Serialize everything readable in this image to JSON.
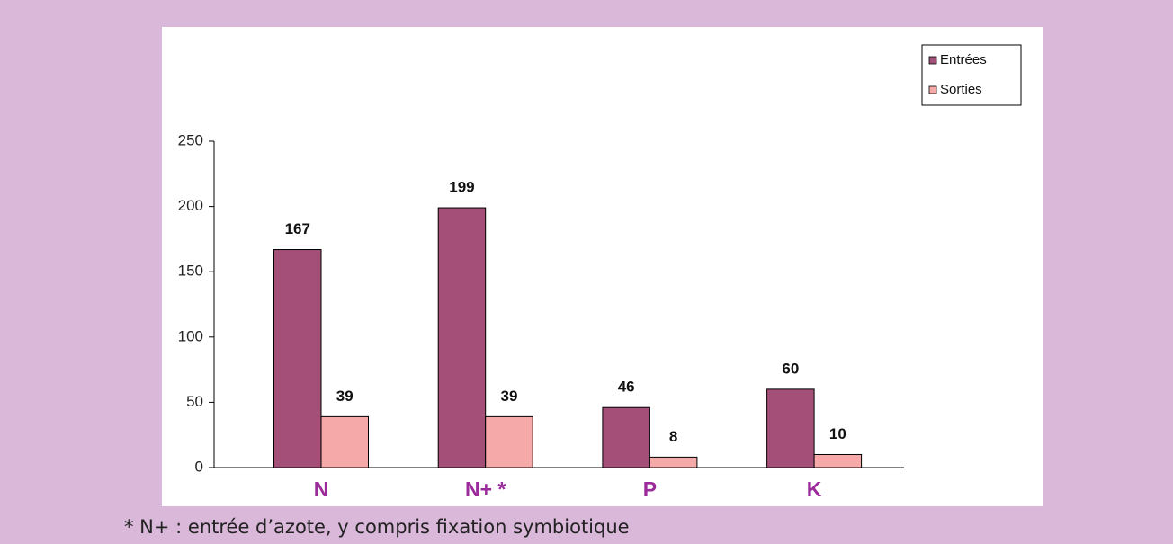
{
  "chart_data": {
    "type": "bar",
    "categories": [
      "N",
      "N+ *",
      "P",
      "K"
    ],
    "series": [
      {
        "name": "Entrées",
        "color": "#a44f78",
        "values": [
          167,
          199,
          46,
          60
        ]
      },
      {
        "name": "Sorties",
        "color": "#f5a9a9",
        "values": [
          39,
          39,
          8,
          10
        ]
      }
    ],
    "ylim": [
      0,
      250
    ],
    "yticks": [
      0,
      50,
      100,
      150,
      200,
      250
    ],
    "legend": "top-right",
    "footnote": "* N+ : entrée d’azote, y compris fixation symbiotique"
  }
}
